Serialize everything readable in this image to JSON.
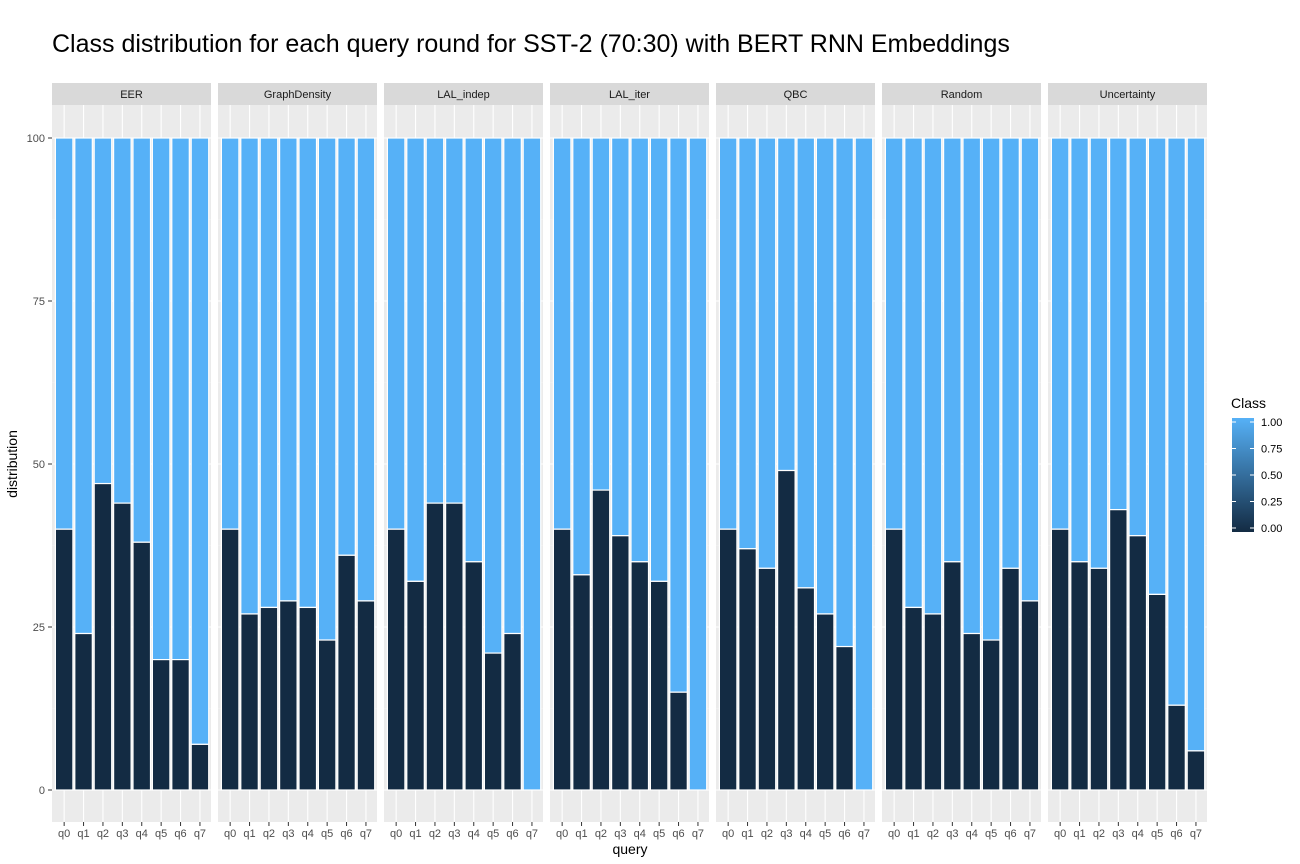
{
  "chart_data": {
    "type": "bar",
    "stacked": true,
    "title": "Class distribution for each query round for SST-2 (70:30) with BERT RNN Embeddings",
    "xlabel": "query",
    "ylabel": "distribution",
    "ylim": [
      0,
      100
    ],
    "y_ticks": [
      0,
      25,
      50,
      75,
      100
    ],
    "categories": [
      "q0",
      "q1",
      "q2",
      "q3",
      "q4",
      "q5",
      "q6",
      "q7"
    ],
    "legend": {
      "title": "Class",
      "placement": "right",
      "labels": [
        "1.00",
        "0.75",
        "0.50",
        "0.25",
        "0.00"
      ],
      "low_color": "#132B43",
      "high_color": "#56B1F7"
    },
    "colors": {
      "class_0": "#132B43",
      "class_1": "#56B1F7",
      "panel_bg": "#EBEBEB",
      "strip_bg": "#D9D9D9"
    },
    "panels": [
      {
        "name": "EER",
        "class_0": [
          40,
          24,
          47,
          44,
          38,
          20,
          20,
          7
        ]
      },
      {
        "name": "GraphDensity",
        "class_0": [
          40,
          27,
          28,
          29,
          28,
          23,
          36,
          29
        ]
      },
      {
        "name": "LAL_indep",
        "class_0": [
          40,
          32,
          44,
          44,
          35,
          21,
          24,
          0
        ]
      },
      {
        "name": "LAL_iter",
        "class_0": [
          40,
          33,
          46,
          39,
          35,
          32,
          15,
          0
        ]
      },
      {
        "name": "QBC",
        "class_0": [
          40,
          37,
          34,
          49,
          31,
          27,
          22,
          0
        ]
      },
      {
        "name": "Random",
        "class_0": [
          40,
          28,
          27,
          35,
          24,
          23,
          34,
          29
        ]
      },
      {
        "name": "Uncertainty",
        "class_0": [
          40,
          35,
          34,
          43,
          39,
          30,
          13,
          6
        ]
      }
    ]
  }
}
